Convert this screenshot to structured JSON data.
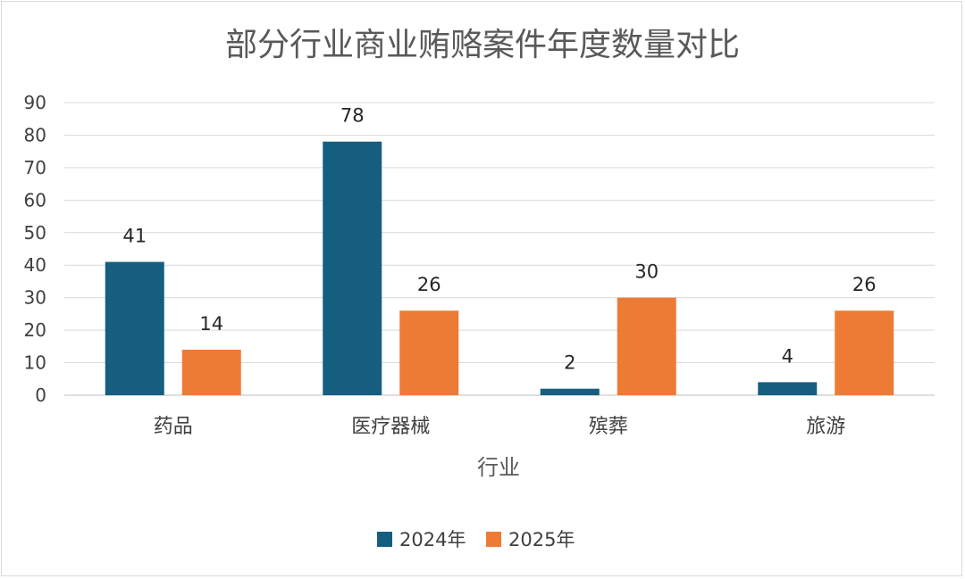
{
  "chart_data": {
    "type": "bar",
    "title": "部分行业商业贿赂案件年度数量对比",
    "xlabel": "行业",
    "ylabel": "",
    "categories": [
      "药品",
      "医疗器械",
      "殡葬",
      "旅游"
    ],
    "series": [
      {
        "name": "2024年",
        "values": [
          41,
          78,
          2,
          4
        ],
        "color": "#155e80"
      },
      {
        "name": "2025年",
        "values": [
          14,
          26,
          30,
          26
        ],
        "color": "#ee7b35"
      }
    ],
    "ylim": [
      0,
      90
    ],
    "yticks": [
      0,
      10,
      20,
      30,
      40,
      50,
      60,
      70,
      80,
      90
    ],
    "grid": true,
    "legend": "bottom"
  }
}
